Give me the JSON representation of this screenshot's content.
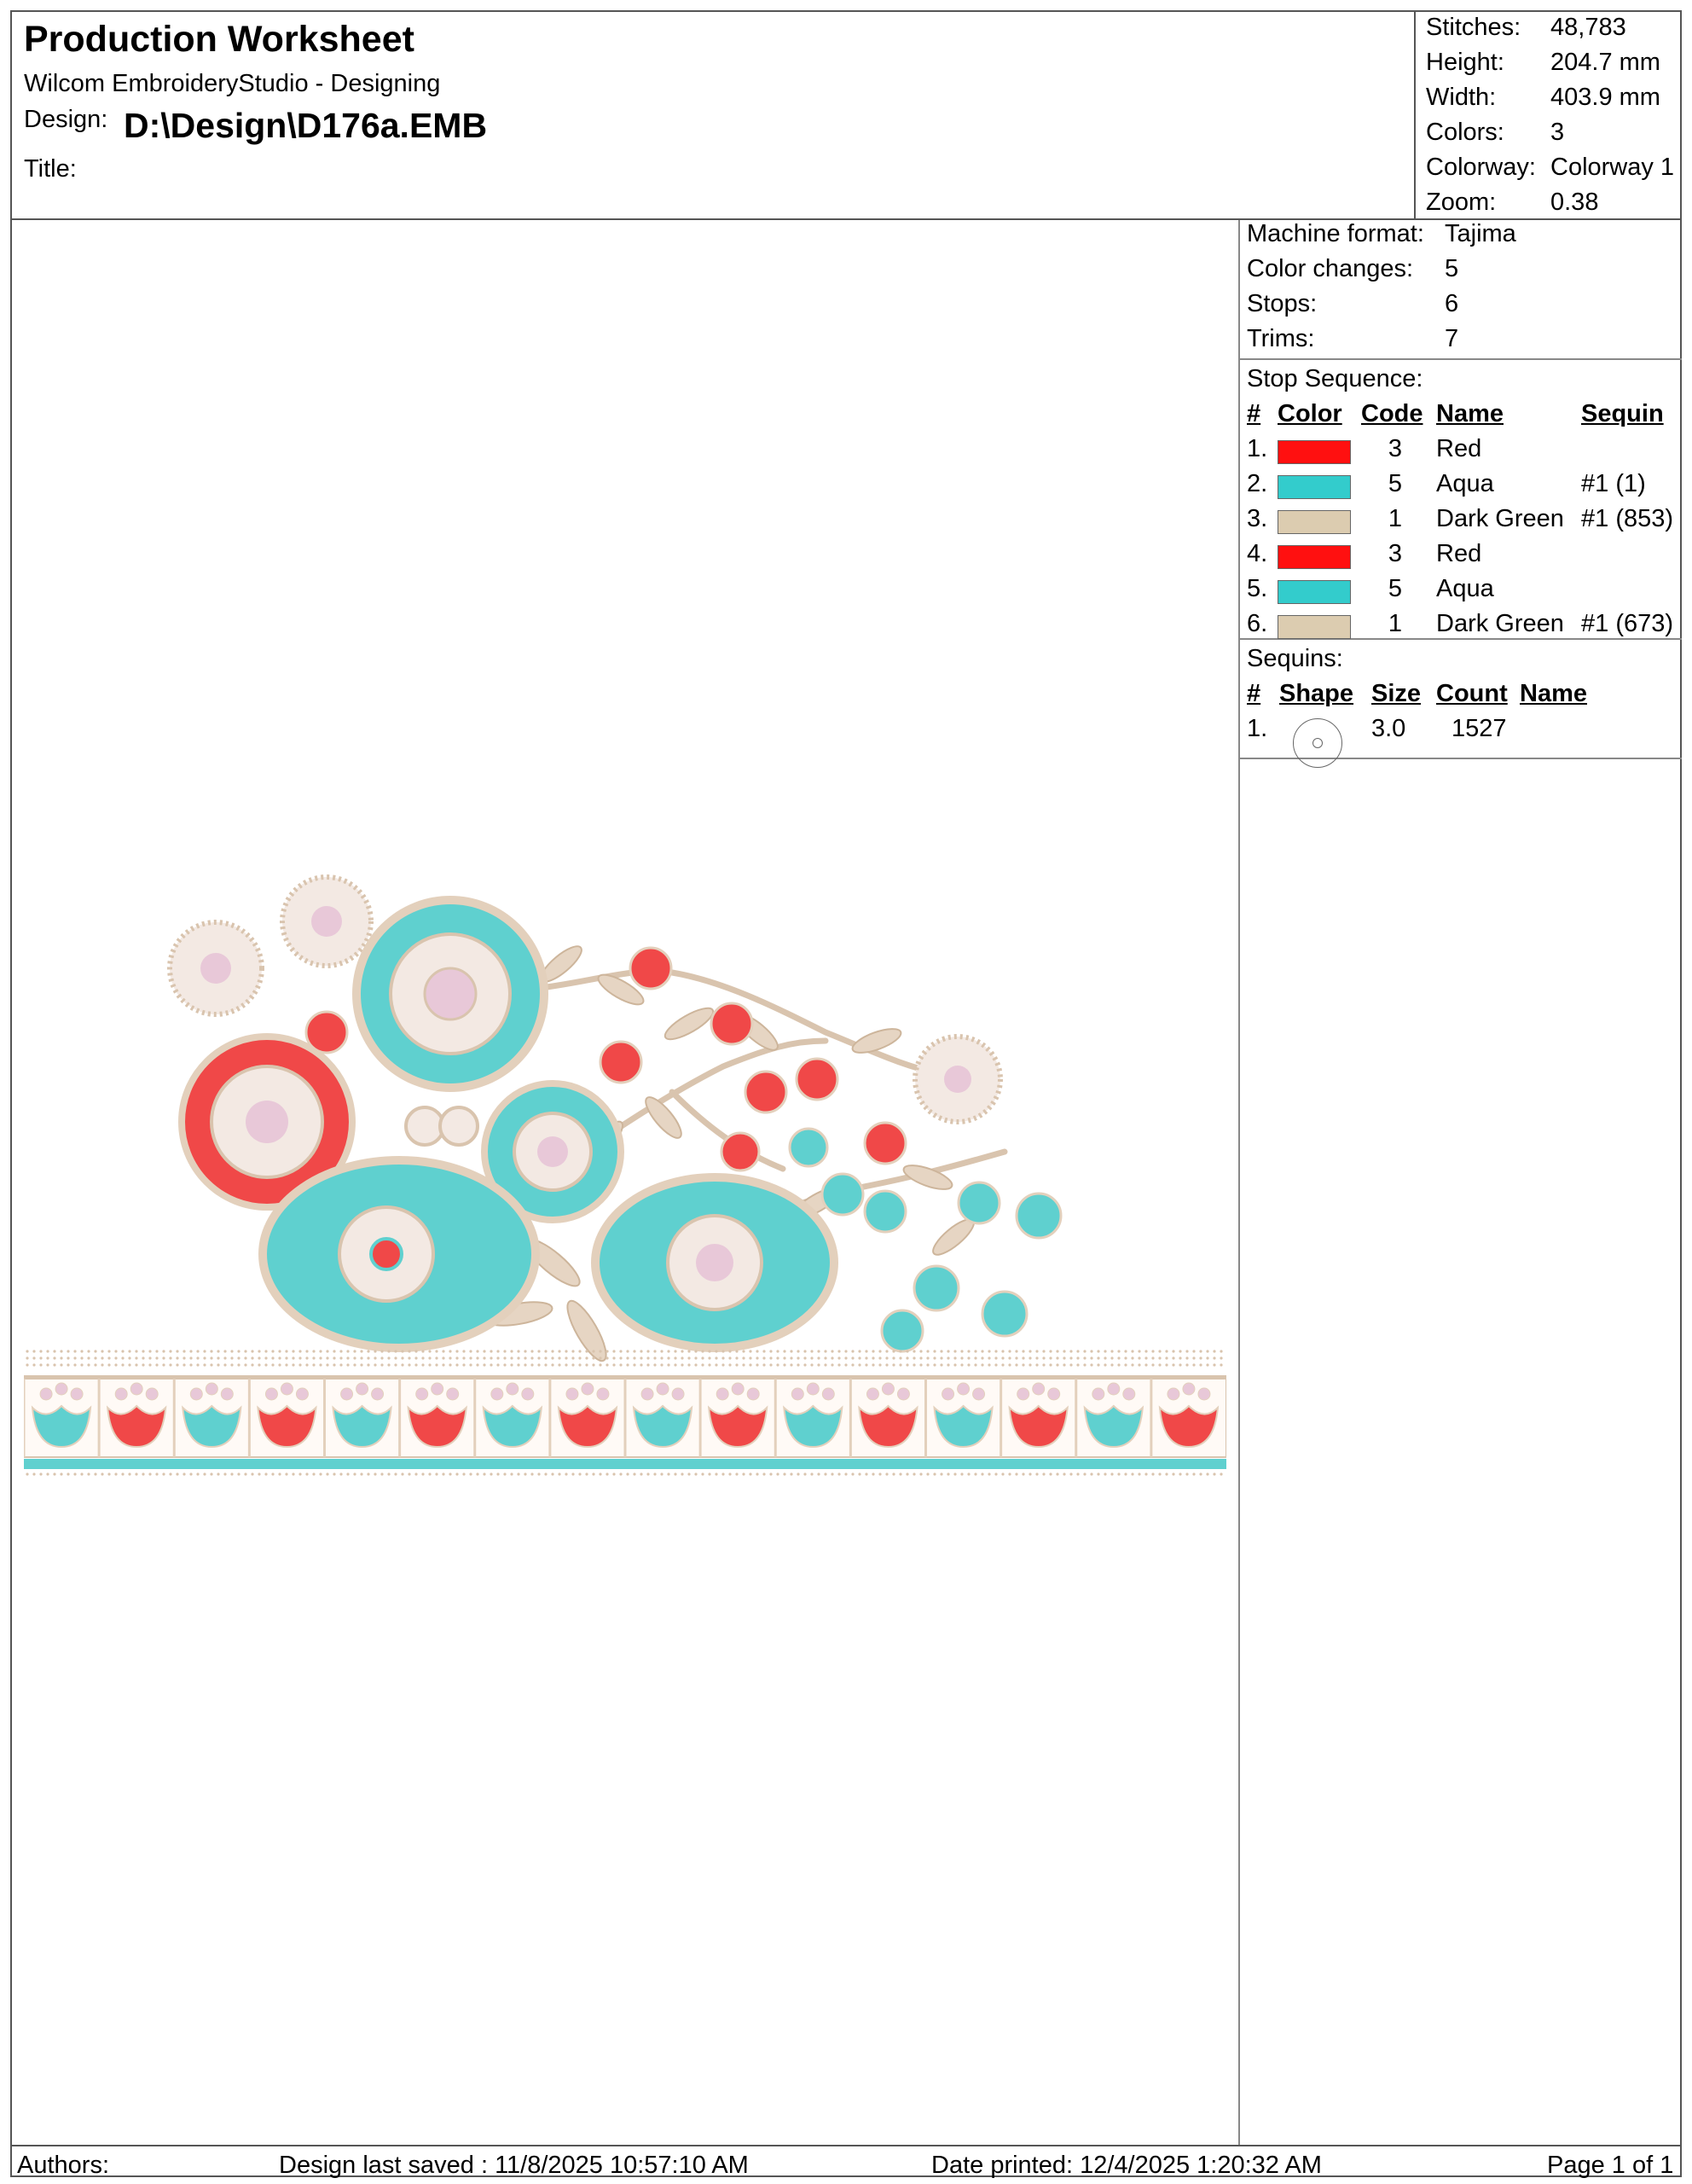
{
  "header": {
    "title": "Production Worksheet",
    "app": "Wilcom EmbroideryStudio - Designing",
    "design_label": "Design:",
    "design_path": "D:\\Design\\D176a.EMB",
    "title_label": "Title:"
  },
  "stats": [
    {
      "label": "Stitches:",
      "value": "48,783"
    },
    {
      "label": "Height:",
      "value": "204.7 mm"
    },
    {
      "label": "Width:",
      "value": "403.9 mm"
    },
    {
      "label": "Colors:",
      "value": "3"
    },
    {
      "label": "Colorway:",
      "value": "Colorway 1"
    },
    {
      "label": "Zoom:",
      "value": "0.38"
    }
  ],
  "machine": [
    {
      "label": "Machine format:",
      "value": "Tajima"
    },
    {
      "label": "Color changes:",
      "value": "5"
    },
    {
      "label": "Stops:",
      "value": "6"
    },
    {
      "label": "Trims:",
      "value": "7"
    }
  ],
  "stop_sequence": {
    "title": "Stop Sequence:",
    "headers": {
      "num": "#",
      "color": "Color",
      "code": "Code",
      "name": "Name",
      "sequin": "Sequin"
    },
    "rows": [
      {
        "num": "1.",
        "color": "#ff1010",
        "code": "3",
        "name": "Red",
        "sequin": ""
      },
      {
        "num": "2.",
        "color": "#33cccc",
        "code": "5",
        "name": "Aqua",
        "sequin": "#1 (1)"
      },
      {
        "num": "3.",
        "color": "#dcccb0",
        "code": "1",
        "name": "Dark Green",
        "sequin": "#1 (853)"
      },
      {
        "num": "4.",
        "color": "#ff1010",
        "code": "3",
        "name": "Red",
        "sequin": ""
      },
      {
        "num": "5.",
        "color": "#33cccc",
        "code": "5",
        "name": "Aqua",
        "sequin": ""
      },
      {
        "num": "6.",
        "color": "#dcccb0",
        "code": "1",
        "name": "Dark Green",
        "sequin": "#1 (673)"
      }
    ]
  },
  "sequins": {
    "title": "Sequins:",
    "headers": {
      "num": "#",
      "shape": "Shape",
      "size": "Size",
      "count": "Count",
      "name": "Name"
    },
    "rows": [
      {
        "num": "1.",
        "shape": "circle-sequin-icon",
        "size": "3.0",
        "count": "1527",
        "name": ""
      }
    ]
  },
  "footer": {
    "authors": "Authors:",
    "saved": "Design last saved : 11/8/2025 10:57:10 AM",
    "printed": "Date printed: 12/4/2025 1:20:32 AM",
    "page": "Page 1 of 1"
  },
  "design_colors": {
    "red": "#f04848",
    "aqua": "#5fd0cf",
    "beige": "#e3d0bc",
    "pink": "#e8c8d8"
  }
}
